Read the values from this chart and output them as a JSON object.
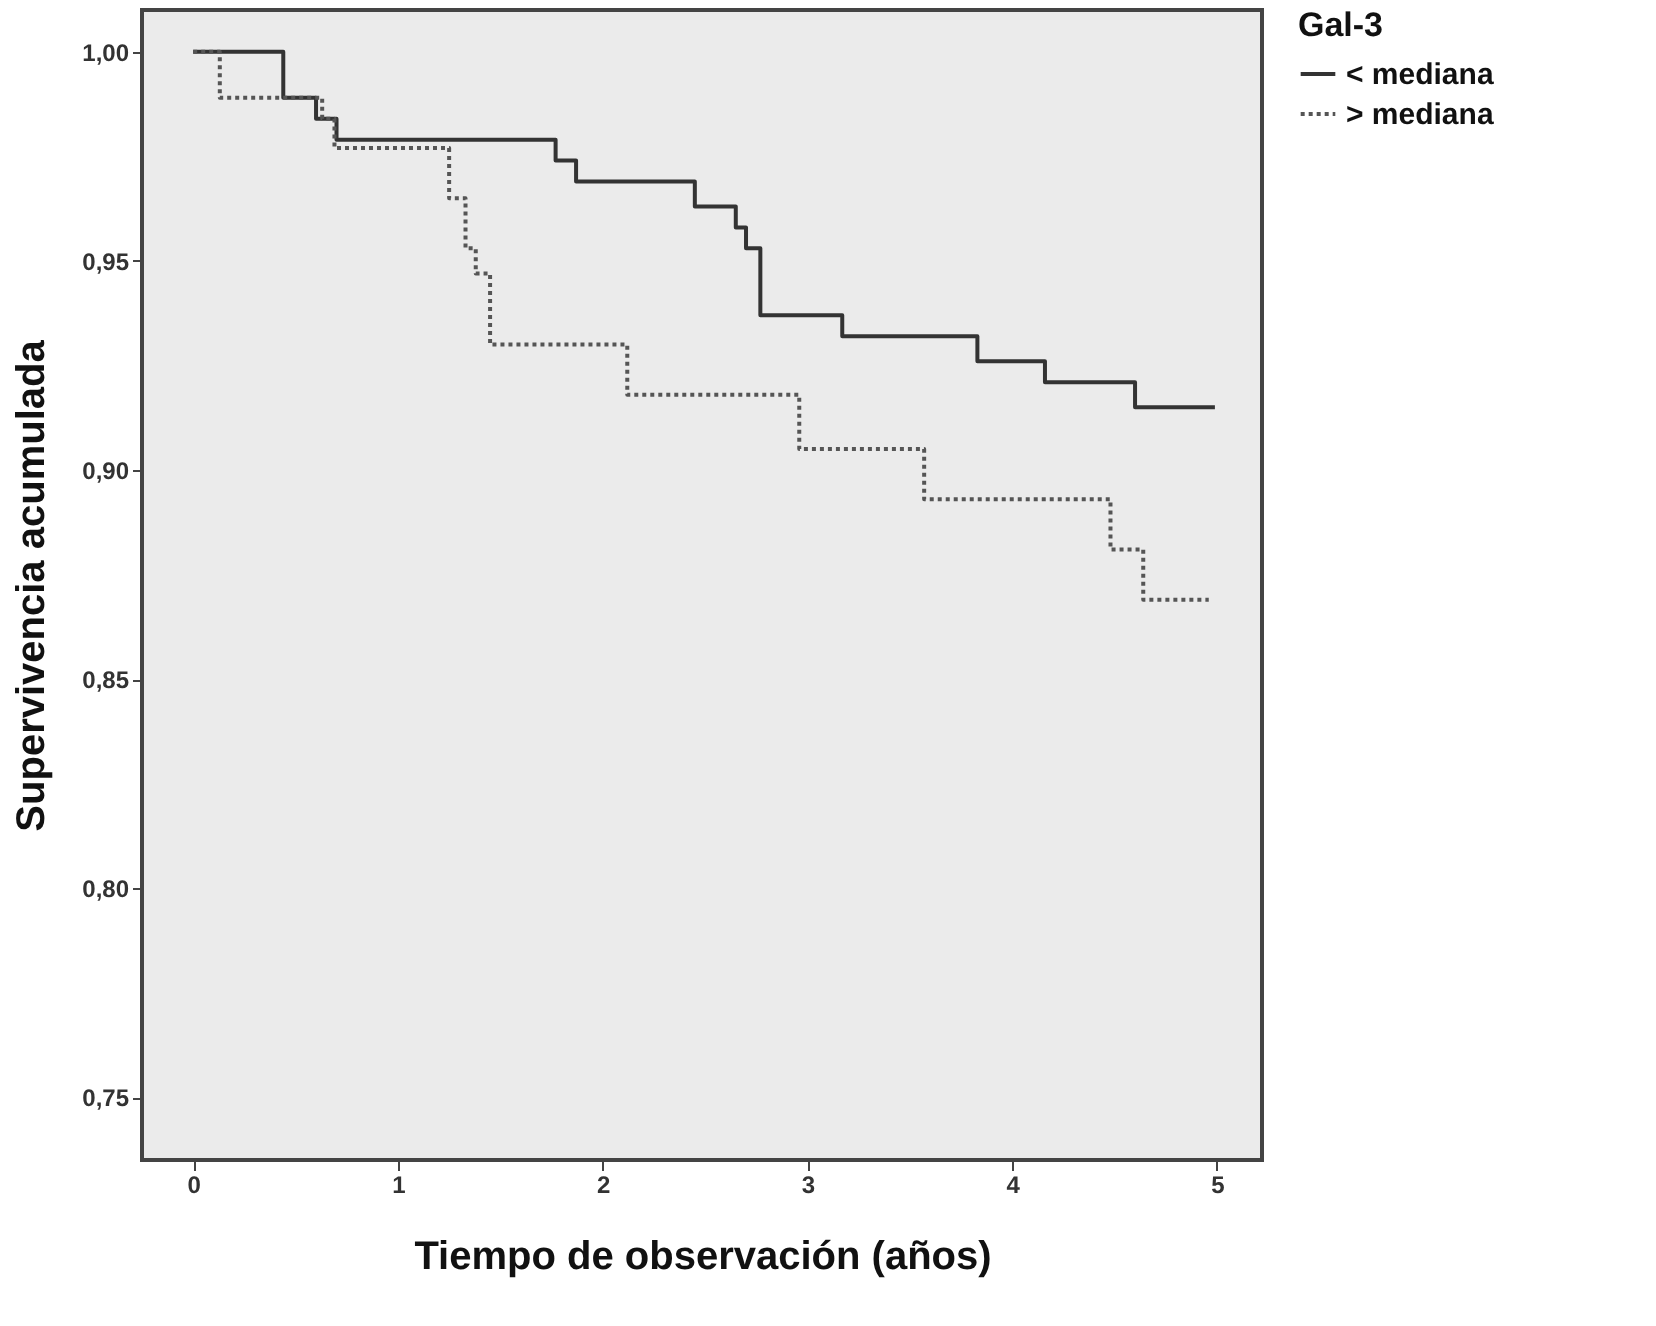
{
  "chart_data": {
    "type": "step",
    "xlabel": "Tiempo de observación (años)",
    "ylabel": "Supervivencia acumulada",
    "legend_title": "Gal-3",
    "legend": "top right",
    "grid": false,
    "marker": "none",
    "xlim": [
      -0.25,
      5.22
    ],
    "xticks": [
      0,
      1,
      2,
      3,
      4,
      5
    ],
    "ylim": [
      0.735,
      1.01
    ],
    "yticks": [
      {
        "value": 0.75,
        "label": "0,75"
      },
      {
        "value": 0.8,
        "label": "0,80"
      },
      {
        "value": 0.85,
        "label": "0,85"
      },
      {
        "value": 0.9,
        "label": "0,90"
      },
      {
        "value": 0.95,
        "label": "0,95"
      },
      {
        "value": 1.0,
        "label": "1,00"
      }
    ],
    "series": [
      {
        "name": "< mediana",
        "color": "#333333",
        "line_style": "solid",
        "x": [
          0,
          0.44,
          0.6,
          0.7,
          1.77,
          1.87,
          2.45,
          2.65,
          2.7,
          2.77,
          3.17,
          3.83,
          4.16,
          4.6,
          4.99
        ],
        "values": [
          1.0,
          0.989,
          0.984,
          0.979,
          0.974,
          0.969,
          0.963,
          0.958,
          0.953,
          0.937,
          0.932,
          0.926,
          0.921,
          0.915,
          0.915
        ]
      },
      {
        "name": "> mediana",
        "color": "#555555",
        "line_style": "dotted",
        "x": [
          0,
          0.13,
          0.63,
          0.69,
          1.25,
          1.33,
          1.38,
          1.45,
          2.12,
          2.96,
          3.57,
          4.48,
          4.64,
          4.96
        ],
        "values": [
          1.0,
          0.989,
          0.984,
          0.977,
          0.965,
          0.953,
          0.947,
          0.93,
          0.918,
          0.905,
          0.893,
          0.881,
          0.869,
          0.869
        ]
      }
    ]
  }
}
